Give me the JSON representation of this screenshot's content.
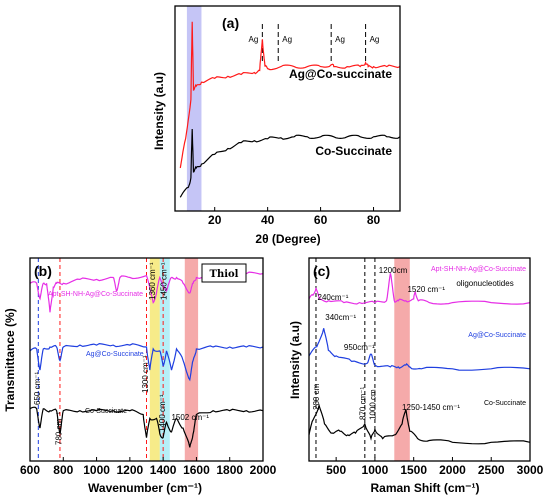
{
  "colors": {
    "black": "#000000",
    "red": "#ff1a1a",
    "blue": "#1f3fe0",
    "magenta": "#e62ee6",
    "highlight_blue": "#9f9ff0",
    "highlight_yellow": "#f2e04a",
    "highlight_cyan": "#8fe6f2",
    "highlight_salmon": "#f07c7c",
    "highlight_purple": "#8c7cf0"
  },
  "chart_data": [
    {
      "type": "line",
      "panel_label": "(a)",
      "xlabel": "2θ (Degree)",
      "ylabel": "Intensity (a.u)",
      "xlim": [
        5,
        90
      ],
      "xticks": [
        "20",
        "40",
        "60",
        "80"
      ],
      "xtick_values": [
        20,
        40,
        60,
        80
      ],
      "highlight_range": [
        9.5,
        15
      ],
      "peak_markers": [
        {
          "x": 38,
          "label": "Ag"
        },
        {
          "x": 44,
          "label": "Ag"
        },
        {
          "x": 64,
          "label": "Ag"
        },
        {
          "x": 77,
          "label": "Ag"
        }
      ],
      "series": [
        {
          "name": "Ag@Co-succinate",
          "color": "#ff1a1a",
          "x": [
            7,
            9,
            11,
            11.5,
            12,
            13,
            15,
            20,
            25,
            30,
            35,
            37,
            38,
            39,
            40,
            45,
            50,
            55,
            60,
            64,
            65,
            70,
            75,
            77,
            78,
            80,
            85,
            90
          ],
          "y": [
            0.2,
            0.35,
            0.55,
            0.95,
            0.6,
            0.62,
            0.64,
            0.66,
            0.67,
            0.68,
            0.69,
            0.7,
            0.86,
            0.72,
            0.71,
            0.72,
            0.72,
            0.72,
            0.72,
            0.73,
            0.72,
            0.72,
            0.72,
            0.74,
            0.72,
            0.72,
            0.72,
            0.72
          ]
        },
        {
          "name": "Co-Succinate",
          "color": "#000000",
          "x": [
            7,
            10,
            11,
            11.5,
            12,
            13,
            15,
            20,
            25,
            30,
            35,
            40,
            45,
            50,
            55,
            60,
            65,
            70,
            75,
            80,
            85,
            90
          ],
          "y": [
            0.05,
            0.1,
            0.15,
            0.4,
            0.18,
            0.2,
            0.22,
            0.27,
            0.3,
            0.33,
            0.34,
            0.35,
            0.355,
            0.36,
            0.36,
            0.36,
            0.36,
            0.36,
            0.36,
            0.36,
            0.36,
            0.36
          ]
        }
      ]
    },
    {
      "type": "line",
      "panel_label": "(b)",
      "xlabel": "Wavenumber (cm⁻¹)",
      "ylabel": "Transmittance (%)",
      "xlim": [
        600,
        2000
      ],
      "xticks": [
        "600",
        "800",
        "1000",
        "1200",
        "1400",
        "1600",
        "1800",
        "2000"
      ],
      "xtick_values": [
        600,
        800,
        1000,
        1200,
        1400,
        1600,
        1800,
        2000
      ],
      "legend_box": "Thiol",
      "highlights": [
        {
          "from": 1320,
          "to": 1380,
          "color": "#f2e04a"
        },
        {
          "from": 1380,
          "to": 1440,
          "color": "#8fe6f2"
        },
        {
          "from": 1530,
          "to": 1610,
          "color": "#f07c7c"
        }
      ],
      "dashed_lines_x": [
        650,
        780,
        1300,
        1400
      ],
      "annotations": [
        {
          "text": "650 cm⁻¹",
          "x": 660
        },
        {
          "text": "780 cm⁻¹",
          "x": 790
        },
        {
          "text": "1300 cm⁻¹",
          "x": 1310
        },
        {
          "text": "1360 cm⁻¹",
          "x": 1350
        },
        {
          "text": "1450 cm⁻¹",
          "x": 1420
        },
        {
          "text": "1400 cm⁻¹",
          "x": 1410
        },
        {
          "text": "1502 cm⁻¹",
          "x": 1450
        }
      ],
      "series": [
        {
          "name": "Apt-SH-NH-Ag@Co-Succinate",
          "color": "#e62ee6",
          "x": [
            600,
            640,
            660,
            680,
            700,
            720,
            740,
            760,
            800,
            900,
            1000,
            1100,
            1120,
            1140,
            1200,
            1300,
            1340,
            1360,
            1380,
            1420,
            1450,
            1480,
            1520,
            1560,
            1580,
            1600,
            1700,
            1800,
            1900,
            2000
          ],
          "y": [
            0.9,
            0.9,
            0.82,
            0.9,
            0.9,
            0.75,
            0.88,
            0.9,
            0.9,
            0.92,
            0.92,
            0.93,
            0.86,
            0.93,
            0.93,
            0.94,
            0.8,
            0.85,
            0.93,
            0.86,
            0.93,
            0.93,
            0.9,
            0.85,
            0.9,
            0.93,
            0.94,
            0.95,
            0.95,
            0.95
          ]
        },
        {
          "name": "Ag@Co-Succinate",
          "color": "#1f3fe0",
          "x": [
            600,
            640,
            660,
            680,
            720,
            760,
            780,
            800,
            900,
            1000,
            1100,
            1200,
            1300,
            1320,
            1340,
            1380,
            1400,
            1420,
            1450,
            1480,
            1520,
            1560,
            1580,
            1600,
            1700,
            1800,
            1900,
            2000
          ],
          "y": [
            0.55,
            0.56,
            0.45,
            0.56,
            0.57,
            0.57,
            0.5,
            0.57,
            0.58,
            0.58,
            0.58,
            0.58,
            0.57,
            0.45,
            0.56,
            0.55,
            0.47,
            0.55,
            0.45,
            0.56,
            0.5,
            0.4,
            0.5,
            0.56,
            0.57,
            0.57,
            0.57,
            0.57
          ]
        },
        {
          "name": "Co-Succinate",
          "color": "#000000",
          "x": [
            600,
            640,
            660,
            680,
            720,
            760,
            780,
            800,
            900,
            1000,
            1100,
            1200,
            1280,
            1300,
            1320,
            1360,
            1380,
            1400,
            1420,
            1450,
            1480,
            1520,
            1560,
            1580,
            1600,
            1700,
            1800,
            1900,
            2000
          ],
          "y": [
            0.25,
            0.25,
            0.15,
            0.25,
            0.24,
            0.24,
            0.12,
            0.24,
            0.24,
            0.24,
            0.24,
            0.24,
            0.22,
            0.1,
            0.2,
            0.2,
            0.12,
            0.1,
            0.18,
            0.13,
            0.2,
            0.15,
            0.05,
            0.12,
            0.22,
            0.24,
            0.24,
            0.24,
            0.24
          ]
        }
      ]
    },
    {
      "type": "line",
      "panel_label": "(c)",
      "xlabel": "Raman Shift (cm⁻¹)",
      "ylabel": "Intensity (a.u)",
      "xlim": [
        150,
        3000
      ],
      "xticks": [
        "500",
        "1000",
        "1500",
        "2000",
        "2500",
        "3000"
      ],
      "xtick_values": [
        500,
        1000,
        1500,
        2000,
        2500,
        3000
      ],
      "highlights": [
        {
          "from": 1250,
          "to": 1450,
          "color": "#f07c7c"
        }
      ],
      "dashed_lines_x": [
        240,
        870,
        1000
      ],
      "annotations": [
        {
          "text": "240cm⁻¹",
          "x": 260
        },
        {
          "text": "1200cm",
          "x": 1050
        },
        {
          "text": "1520 cm⁻¹",
          "x": 1420
        },
        {
          "text": "oligonucleotides",
          "x": 2050
        },
        {
          "text": "340cm⁻¹",
          "x": 360
        },
        {
          "text": "950cm⁻¹",
          "x": 600
        },
        {
          "text": "280 cm",
          "x": 280
        },
        {
          "text": "870 cm⁻¹",
          "x": 880
        },
        {
          "text": "1000 cm",
          "x": 1010
        },
        {
          "text": "1250-1450 cm⁻¹",
          "x": 1350
        }
      ],
      "series": [
        {
          "name": "Apt-SH-NH-Ag@Co-Succinate",
          "color": "#e62ee6",
          "x": [
            150,
            200,
            240,
            280,
            400,
            600,
            800,
            1000,
            1150,
            1200,
            1250,
            1300,
            1400,
            1500,
            1520,
            1560,
            1700,
            2000,
            2500,
            3000
          ],
          "y": [
            0.86,
            0.88,
            0.92,
            0.86,
            0.85,
            0.84,
            0.84,
            0.84,
            0.85,
            1.0,
            0.85,
            0.85,
            0.85,
            0.86,
            0.9,
            0.85,
            0.84,
            0.84,
            0.84,
            0.84
          ]
        },
        {
          "name": "Ag@Co-Succinate",
          "color": "#1f3fe0",
          "x": [
            150,
            250,
            340,
            400,
            500,
            700,
            900,
            950,
            1000,
            1200,
            1300,
            1400,
            1450,
            1600,
            2000,
            2500,
            3000
          ],
          "y": [
            0.55,
            0.6,
            0.7,
            0.58,
            0.55,
            0.52,
            0.51,
            0.56,
            0.5,
            0.49,
            0.49,
            0.5,
            0.49,
            0.48,
            0.48,
            0.48,
            0.48
          ]
        },
        {
          "name": "Co-Succinate",
          "color": "#000000",
          "x": [
            150,
            200,
            280,
            350,
            450,
            550,
            650,
            750,
            870,
            950,
            1000,
            1100,
            1250,
            1350,
            1400,
            1450,
            1550,
            1700,
            2000,
            2500,
            3000
          ],
          "y": [
            0.12,
            0.2,
            0.28,
            0.18,
            0.13,
            0.14,
            0.12,
            0.13,
            0.18,
            0.1,
            0.15,
            0.1,
            0.12,
            0.18,
            0.26,
            0.14,
            0.1,
            0.09,
            0.08,
            0.08,
            0.08
          ]
        }
      ]
    }
  ]
}
